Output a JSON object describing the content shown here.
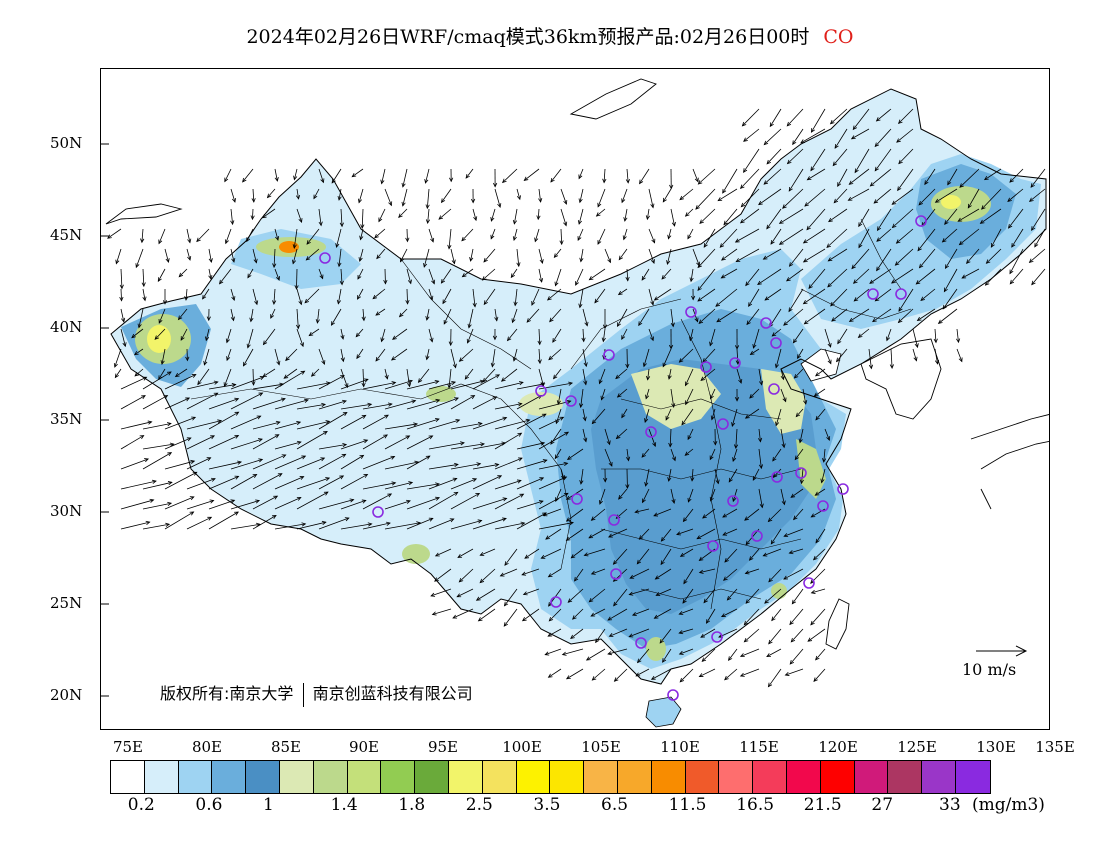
{
  "title": {
    "main": "2024年02月26日WRF/cmaq模式36km预报产品:02月26日00时",
    "species": "CO",
    "species_color": "#e0201a"
  },
  "axes": {
    "lat_labels": [
      "50N",
      "45N",
      "40N",
      "35N",
      "30N",
      "25N",
      "20N"
    ],
    "lon_labels": [
      "75E",
      "80E",
      "85E",
      "90E",
      "95E",
      "100E",
      "105E",
      "110E",
      "115E",
      "120E",
      "125E",
      "130E",
      "135E"
    ]
  },
  "copyright": {
    "part1": "版权所有:南京大学",
    "part2": "南京创蓝科技有限公司"
  },
  "vector_key": {
    "label": "10 m/s"
  },
  "legend": {
    "colors": [
      "#ffffff",
      "#d6eefa",
      "#9ed3f2",
      "#6aaedc",
      "#4a8fc4",
      "#dce9b4",
      "#bcd98c",
      "#c4e07a",
      "#92cc52",
      "#6aaa3a",
      "#f2f46a",
      "#f4e25e",
      "#fdf200",
      "#fce600",
      "#f8b446",
      "#f7a82a",
      "#f88c00",
      "#f05a2a",
      "#fe6e6e",
      "#f43c5a",
      "#f2084c",
      "#fe0000",
      "#d01a7a",
      "#ac3662",
      "#9a36c8",
      "#8a2ae0"
    ],
    "ticks": [
      "0.2",
      "0.6",
      "1",
      "1.4",
      "1.8",
      "2.5",
      "3.5",
      "6.5",
      "11.5",
      "16.5",
      "21.5",
      "27",
      "33"
    ],
    "unit": "(mg/m3)"
  },
  "map_colors": {
    "light_blue": "#d6eefa",
    "mid_blue": "#9ed3f2",
    "blue": "#6aaedc",
    "dark_blue": "#4a8fc4",
    "pale_green": "#dce9b4",
    "green": "#bcd98c",
    "yellow": "#f2f46a",
    "orange": "#f88c00",
    "station": "#8a2ae0"
  }
}
